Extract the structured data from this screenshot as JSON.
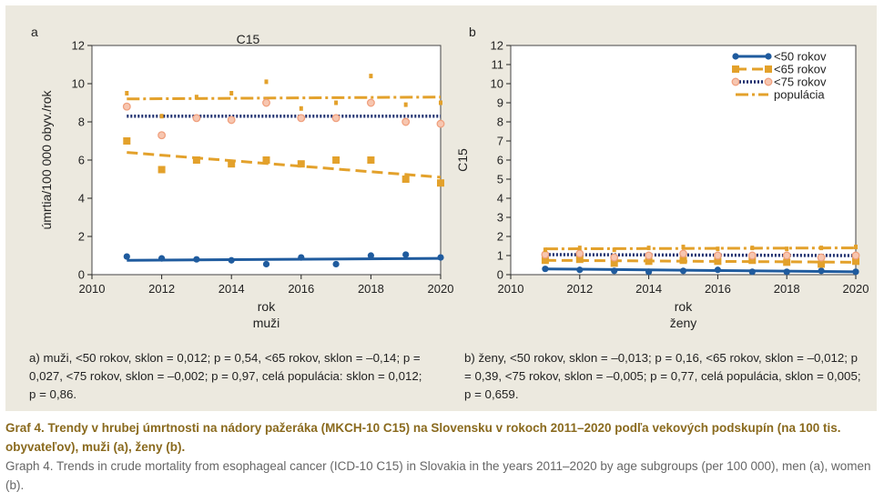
{
  "figure": {
    "notes": {
      "a": "a) muži, <50 rokov, sklon = 0,012; p = 0,54, <65 rokov, sklon = –0,14; p = 0,027, <75 rokov, sklon = –0,002; p = 0,97, celá populácia: sklon = 0,012; p = 0,86.",
      "b": "b) ženy, <50 rokov, sklon = –0,013; p = 0,16, <65 rokov, sklon = –0,012; p = 0,39, <75 rokov, sklon = –0,005; p = 0,77, celá populácia, sklon = 0,005; p = 0,659."
    },
    "caption_sk": "Graf 4. Trendy v hrubej úmrtnosti na nádory pažeráka (MKCH-10 C15) na Slovensku v rokoch 2011–2020 podľa vekových podskupín (na 100 tis. obyvateľov), muži (a), ženy (b).",
    "caption_en": "Graph 4. Trends in crude mortality from esophageal cancer (ICD-10 C15) in Slovakia in the years 2011–2020 by age subgroups (per 100 000), men (a), women (b)."
  },
  "colors": {
    "lt50": "#1f5b9e",
    "lt65": "#e3a12b",
    "lt75": "#1e2f6e",
    "pop": "#e3a12b",
    "lt75_marker": "#f0a07e"
  },
  "chart_data": [
    {
      "type": "scatter",
      "panel": "a",
      "title": "C15",
      "xlabel": "rok",
      "sublabel": "muži",
      "ylabel": "úmrtia/100 000 obyv./rok",
      "xlim": [
        2010,
        2020
      ],
      "ylim": [
        0,
        12
      ],
      "xticks": [
        2010,
        2012,
        2014,
        2016,
        2018,
        2020
      ],
      "yticks": [
        0,
        2,
        4,
        6,
        8,
        10,
        12
      ],
      "x": [
        2011,
        2012,
        2013,
        2014,
        2015,
        2016,
        2017,
        2018,
        2019,
        2020
      ],
      "series": [
        {
          "key": "lt50",
          "values": [
            0.95,
            0.85,
            0.8,
            0.75,
            0.55,
            0.9,
            0.55,
            1.0,
            1.05,
            0.9
          ],
          "trend": [
            0.75,
            0.85
          ]
        },
        {
          "key": "lt65",
          "values": [
            7.0,
            5.5,
            6.0,
            5.8,
            6.0,
            5.8,
            6.0,
            6.0,
            5.0,
            4.8
          ],
          "trend": [
            6.4,
            5.1
          ]
        },
        {
          "key": "lt75",
          "values": [
            8.8,
            7.3,
            8.2,
            8.1,
            9.0,
            8.2,
            8.2,
            9.0,
            8.0,
            7.9
          ],
          "trend": [
            8.3,
            8.3
          ]
        },
        {
          "key": "pop",
          "values": [
            9.5,
            8.3,
            9.3,
            9.5,
            10.1,
            8.7,
            9.0,
            10.4,
            8.9,
            9.0
          ],
          "trend": [
            9.2,
            9.3
          ]
        }
      ]
    },
    {
      "type": "scatter",
      "panel": "b",
      "title": "",
      "xlabel": "rok",
      "sublabel": "ženy",
      "ylabel": "C15",
      "xlim": [
        2010,
        2020
      ],
      "ylim": [
        0,
        12
      ],
      "xticks": [
        2010,
        2012,
        2014,
        2016,
        2018,
        2020
      ],
      "yticks": [
        0,
        1,
        2,
        3,
        4,
        5,
        6,
        7,
        8,
        9,
        10,
        11,
        12
      ],
      "x": [
        2011,
        2012,
        2013,
        2014,
        2015,
        2016,
        2017,
        2018,
        2019,
        2020
      ],
      "legend": {
        "position": "top-right",
        "entries": [
          "<50 rokov",
          "<65 rokov",
          "<75 rokov",
          "populácia"
        ]
      },
      "series": [
        {
          "key": "lt50",
          "values": [
            0.3,
            0.25,
            0.2,
            0.15,
            0.2,
            0.25,
            0.15,
            0.15,
            0.2,
            0.15
          ],
          "trend": [
            0.3,
            0.15
          ]
        },
        {
          "key": "lt65",
          "values": [
            0.75,
            0.8,
            0.6,
            0.7,
            0.75,
            0.7,
            0.75,
            0.65,
            0.55,
            0.7
          ],
          "trend": [
            0.75,
            0.65
          ]
        },
        {
          "key": "lt75",
          "values": [
            1.05,
            1.1,
            0.9,
            1.0,
            1.1,
            1.0,
            1.0,
            1.0,
            0.9,
            1.0
          ],
          "trend": [
            1.05,
            1.0
          ]
        },
        {
          "key": "pop",
          "values": [
            1.3,
            1.4,
            1.3,
            1.4,
            1.45,
            1.35,
            1.4,
            1.35,
            1.4,
            1.45
          ],
          "trend": [
            1.35,
            1.4
          ]
        }
      ]
    }
  ]
}
